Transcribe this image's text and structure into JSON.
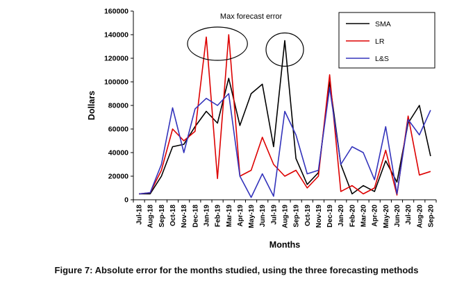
{
  "figure": {
    "caption": "Figure 7: Absolute error for the months studied, using the three forecasting methods"
  },
  "chart_data": {
    "type": "line",
    "title": "",
    "xlabel": "Months",
    "ylabel": "Dollars",
    "ylim": [
      0,
      160000
    ],
    "ytick_step": 20000,
    "grid": false,
    "legend_position": "top-right",
    "annotation": {
      "label": "Max forecast error",
      "circled_peaks": [
        {
          "months": [
            "Jan-19",
            "Mar-19"
          ]
        },
        {
          "months": [
            "Aug-19"
          ]
        }
      ]
    },
    "categories": [
      "Jul-18",
      "Aug-18",
      "Sep-18",
      "Oct-18",
      "Nov-18",
      "Dec-18",
      "Jan-19",
      "Feb-19",
      "Mar-19",
      "Apr-19",
      "May-19",
      "Jun-19",
      "Jul-19",
      "Aug-19",
      "Sep-19",
      "Oct-19",
      "Nov-19",
      "Dec-19",
      "Jan-20",
      "Feb-20",
      "Mar-20",
      "Apr-20",
      "May-20",
      "Jun-20",
      "Jul-20",
      "Aug-20",
      "Sep-20"
    ],
    "series": [
      {
        "name": "SMA",
        "color": "#000000",
        "values": [
          5000,
          5000,
          20000,
          45000,
          47000,
          62000,
          75000,
          65000,
          103000,
          63000,
          90000,
          98000,
          45000,
          135000,
          35000,
          13000,
          23000,
          100000,
          30000,
          5000,
          12000,
          7000,
          33000,
          15000,
          65000,
          80000,
          37000
        ]
      },
      {
        "name": "LR",
        "color": "#dd0000",
        "values": [
          5000,
          6000,
          25000,
          60000,
          50000,
          58000,
          138000,
          18000,
          140000,
          20000,
          25000,
          53000,
          30000,
          20000,
          25000,
          10000,
          20000,
          106000,
          7000,
          12000,
          5000,
          10000,
          42000,
          4000,
          71000,
          21000,
          24000
        ]
      },
      {
        "name": "L&S",
        "color": "#3333bb",
        "values": [
          5000,
          6000,
          30000,
          78000,
          40000,
          77000,
          86000,
          80000,
          90000,
          20000,
          2000,
          22000,
          3000,
          75000,
          55000,
          22000,
          25000,
          95000,
          30000,
          45000,
          40000,
          17000,
          62000,
          5000,
          68000,
          55000,
          76000
        ]
      }
    ]
  }
}
